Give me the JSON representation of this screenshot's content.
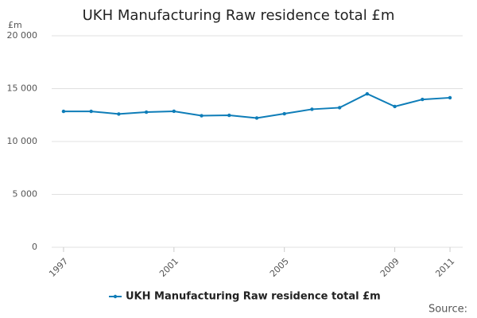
{
  "chart_data": {
    "type": "line",
    "title": "UKH Manufacturing Raw residence total £m",
    "y_unit": "£m",
    "source": "Source:",
    "x": [
      1997,
      1998,
      1999,
      2000,
      2001,
      2002,
      2003,
      2004,
      2005,
      2006,
      2007,
      2008,
      2009,
      2010,
      2011
    ],
    "series": [
      {
        "name": "UKH Manufacturing Raw residence total £m",
        "color": "#0e7db8",
        "values": [
          12850,
          12850,
          12600,
          12780,
          12860,
          12440,
          12480,
          12220,
          12630,
          13050,
          13200,
          14510,
          13310,
          13980,
          14140
        ]
      }
    ],
    "xlim": [
      1996.57,
      2011.46
    ],
    "xticks": [
      1997,
      2001,
      2005,
      2009,
      2011
    ],
    "ylim": [
      0,
      20000
    ],
    "yticks": [
      0,
      {
        "value": 5000,
        "label": "5 000"
      },
      {
        "value": 10000,
        "label": "10 000"
      },
      {
        "value": 15000,
        "label": "15 000"
      },
      {
        "value": 20000,
        "label": "20 000"
      }
    ],
    "grid": true
  }
}
